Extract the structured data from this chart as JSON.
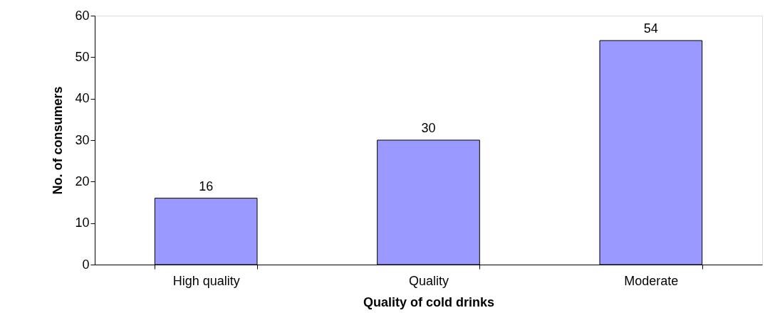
{
  "chart_data": {
    "type": "bar",
    "xlabel": "Quality of cold drinks",
    "ylabel": "No. of consumers",
    "categories": [
      "High quality",
      "Quality",
      "Moderate"
    ],
    "values": [
      16,
      30,
      54
    ],
    "color": "#9999ff",
    "ylim": [
      0,
      60
    ],
    "yticks": [
      0,
      10,
      20,
      30,
      40,
      50,
      60
    ],
    "grid": false,
    "data_labels": true
  }
}
